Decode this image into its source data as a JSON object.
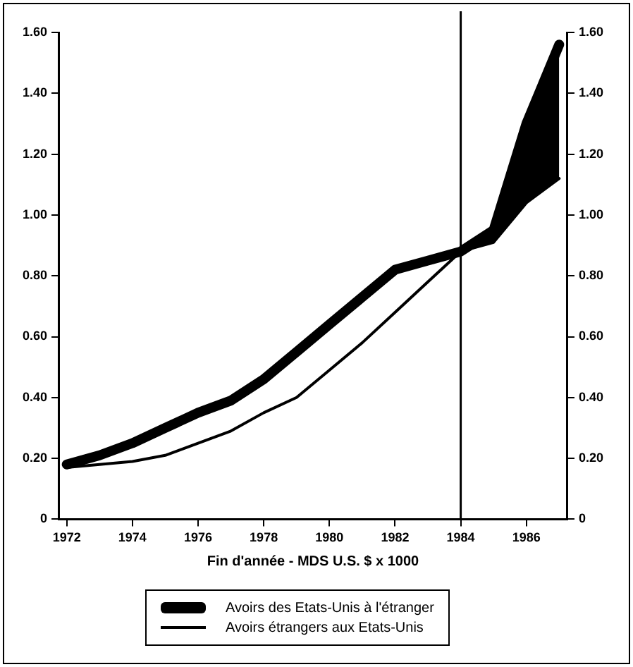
{
  "chart_data": {
    "type": "line",
    "xlabel": "Fin d'année - MDS U.S. $ x 1000",
    "x": [
      1972,
      1973,
      1974,
      1975,
      1976,
      1977,
      1978,
      1979,
      1980,
      1981,
      1982,
      1983,
      1984,
      1985,
      1986,
      1987
    ],
    "series": [
      {
        "name": "Avoirs des Etats-Unis à l'étranger",
        "color": "#000000",
        "values": [
          0.18,
          0.21,
          0.25,
          0.3,
          0.35,
          0.39,
          0.46,
          0.55,
          0.64,
          0.73,
          0.82,
          0.85,
          0.88,
          0.95,
          1.3,
          1.56
        ],
        "lower": [
          null,
          null,
          null,
          null,
          null,
          null,
          null,
          null,
          null,
          null,
          null,
          null,
          0.88,
          0.91,
          1.04,
          1.12
        ],
        "upper": [
          null,
          null,
          null,
          null,
          null,
          null,
          null,
          null,
          null,
          null,
          null,
          null,
          0.88,
          0.95,
          1.3,
          1.56
        ]
      },
      {
        "name": "Avoirs étrangers aux Etats-Unis",
        "color": "#000000",
        "values": [
          0.17,
          0.18,
          0.19,
          0.21,
          0.25,
          0.29,
          0.35,
          0.4,
          0.49,
          0.58,
          0.68,
          0.78,
          0.88,
          0.91,
          1.04,
          1.12
        ]
      }
    ],
    "xlim": [
      1971.75,
      1987.25
    ],
    "xticks": [
      1972,
      1974,
      1976,
      1978,
      1980,
      1982,
      1984,
      1986
    ],
    "ylim": [
      0,
      1.6
    ],
    "yticks": [
      0,
      {
        "value": 0.2,
        "label": "0.20"
      },
      {
        "value": 0.4,
        "label": "0.40"
      },
      {
        "value": 0.6,
        "label": "0.60"
      },
      {
        "value": 0.8,
        "label": "0.80"
      },
      {
        "value": 1.0,
        "label": "1.00"
      },
      {
        "value": 1.2,
        "label": "1.20"
      },
      {
        "value": 1.4,
        "label": "1.40"
      },
      {
        "value": 1.6,
        "label": "1.60"
      }
    ],
    "y2lim": [
      0,
      1.6
    ],
    "y2ticks": [
      0,
      {
        "value": 0.2,
        "label": "0.20"
      },
      {
        "value": 0.4,
        "label": "0.40"
      },
      {
        "value": 0.6,
        "label": "0.60"
      },
      {
        "value": 0.8,
        "label": "0.80"
      },
      {
        "value": 1.0,
        "label": "1.00"
      },
      {
        "value": 1.2,
        "label": "1.20"
      },
      {
        "value": 1.4,
        "label": "1.40"
      },
      {
        "value": 1.6,
        "label": "1.60"
      }
    ],
    "ref_lines": [
      {
        "axis": "x",
        "value": 1984,
        "color": "#000000"
      }
    ],
    "grid": false,
    "legend": "bottom",
    "marker": "none",
    "line_style": "solid"
  }
}
